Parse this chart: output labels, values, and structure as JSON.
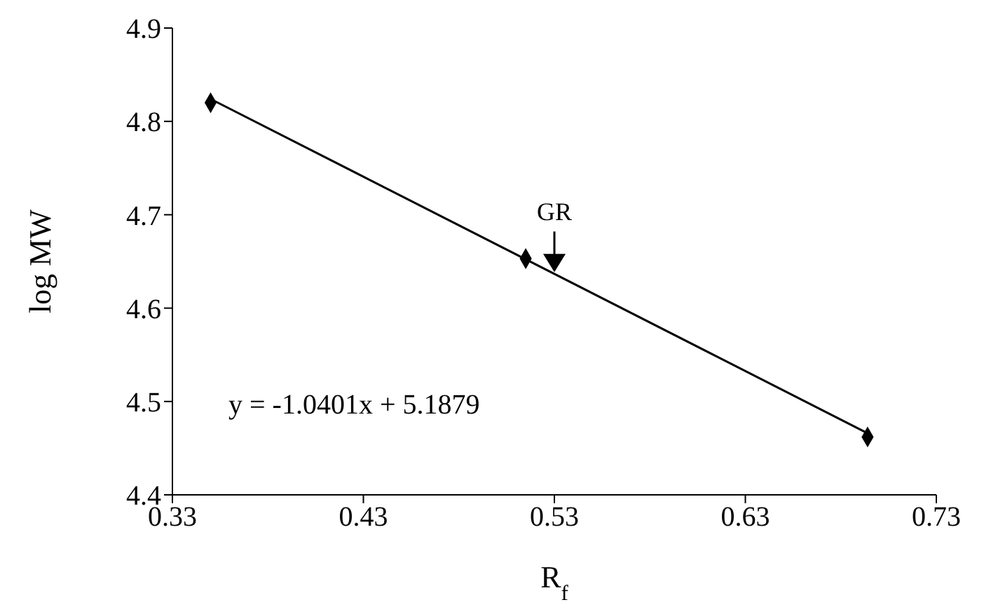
{
  "chart_data": {
    "type": "scatter",
    "xlabel": "R$_{f}$",
    "ylabel": "log MW",
    "series": [
      {
        "x": [
          0.35,
          0.515,
          0.694
        ],
        "values": [
          4.82,
          4.653,
          4.462
        ],
        "color": "#000000",
        "marker": "diamond"
      },
      {
        "type": "line",
        "x": [
          0.35,
          0.694
        ],
        "values": [
          4.824,
          4.466
        ],
        "color": "#000000",
        "marker": "none"
      }
    ],
    "xlim": [
      0.33,
      0.73
    ],
    "xticks": [
      0.33,
      0.43,
      0.53,
      0.63,
      0.73
    ],
    "ylim": [
      4.4,
      4.9
    ],
    "yticks": [
      4.4,
      4.5,
      4.6,
      4.7,
      4.8,
      4.9
    ],
    "annotations": [
      {
        "text": "GR",
        "x": 0.53,
        "y": 4.637
      },
      "y = -1.0401x + 5.1879"
    ]
  }
}
